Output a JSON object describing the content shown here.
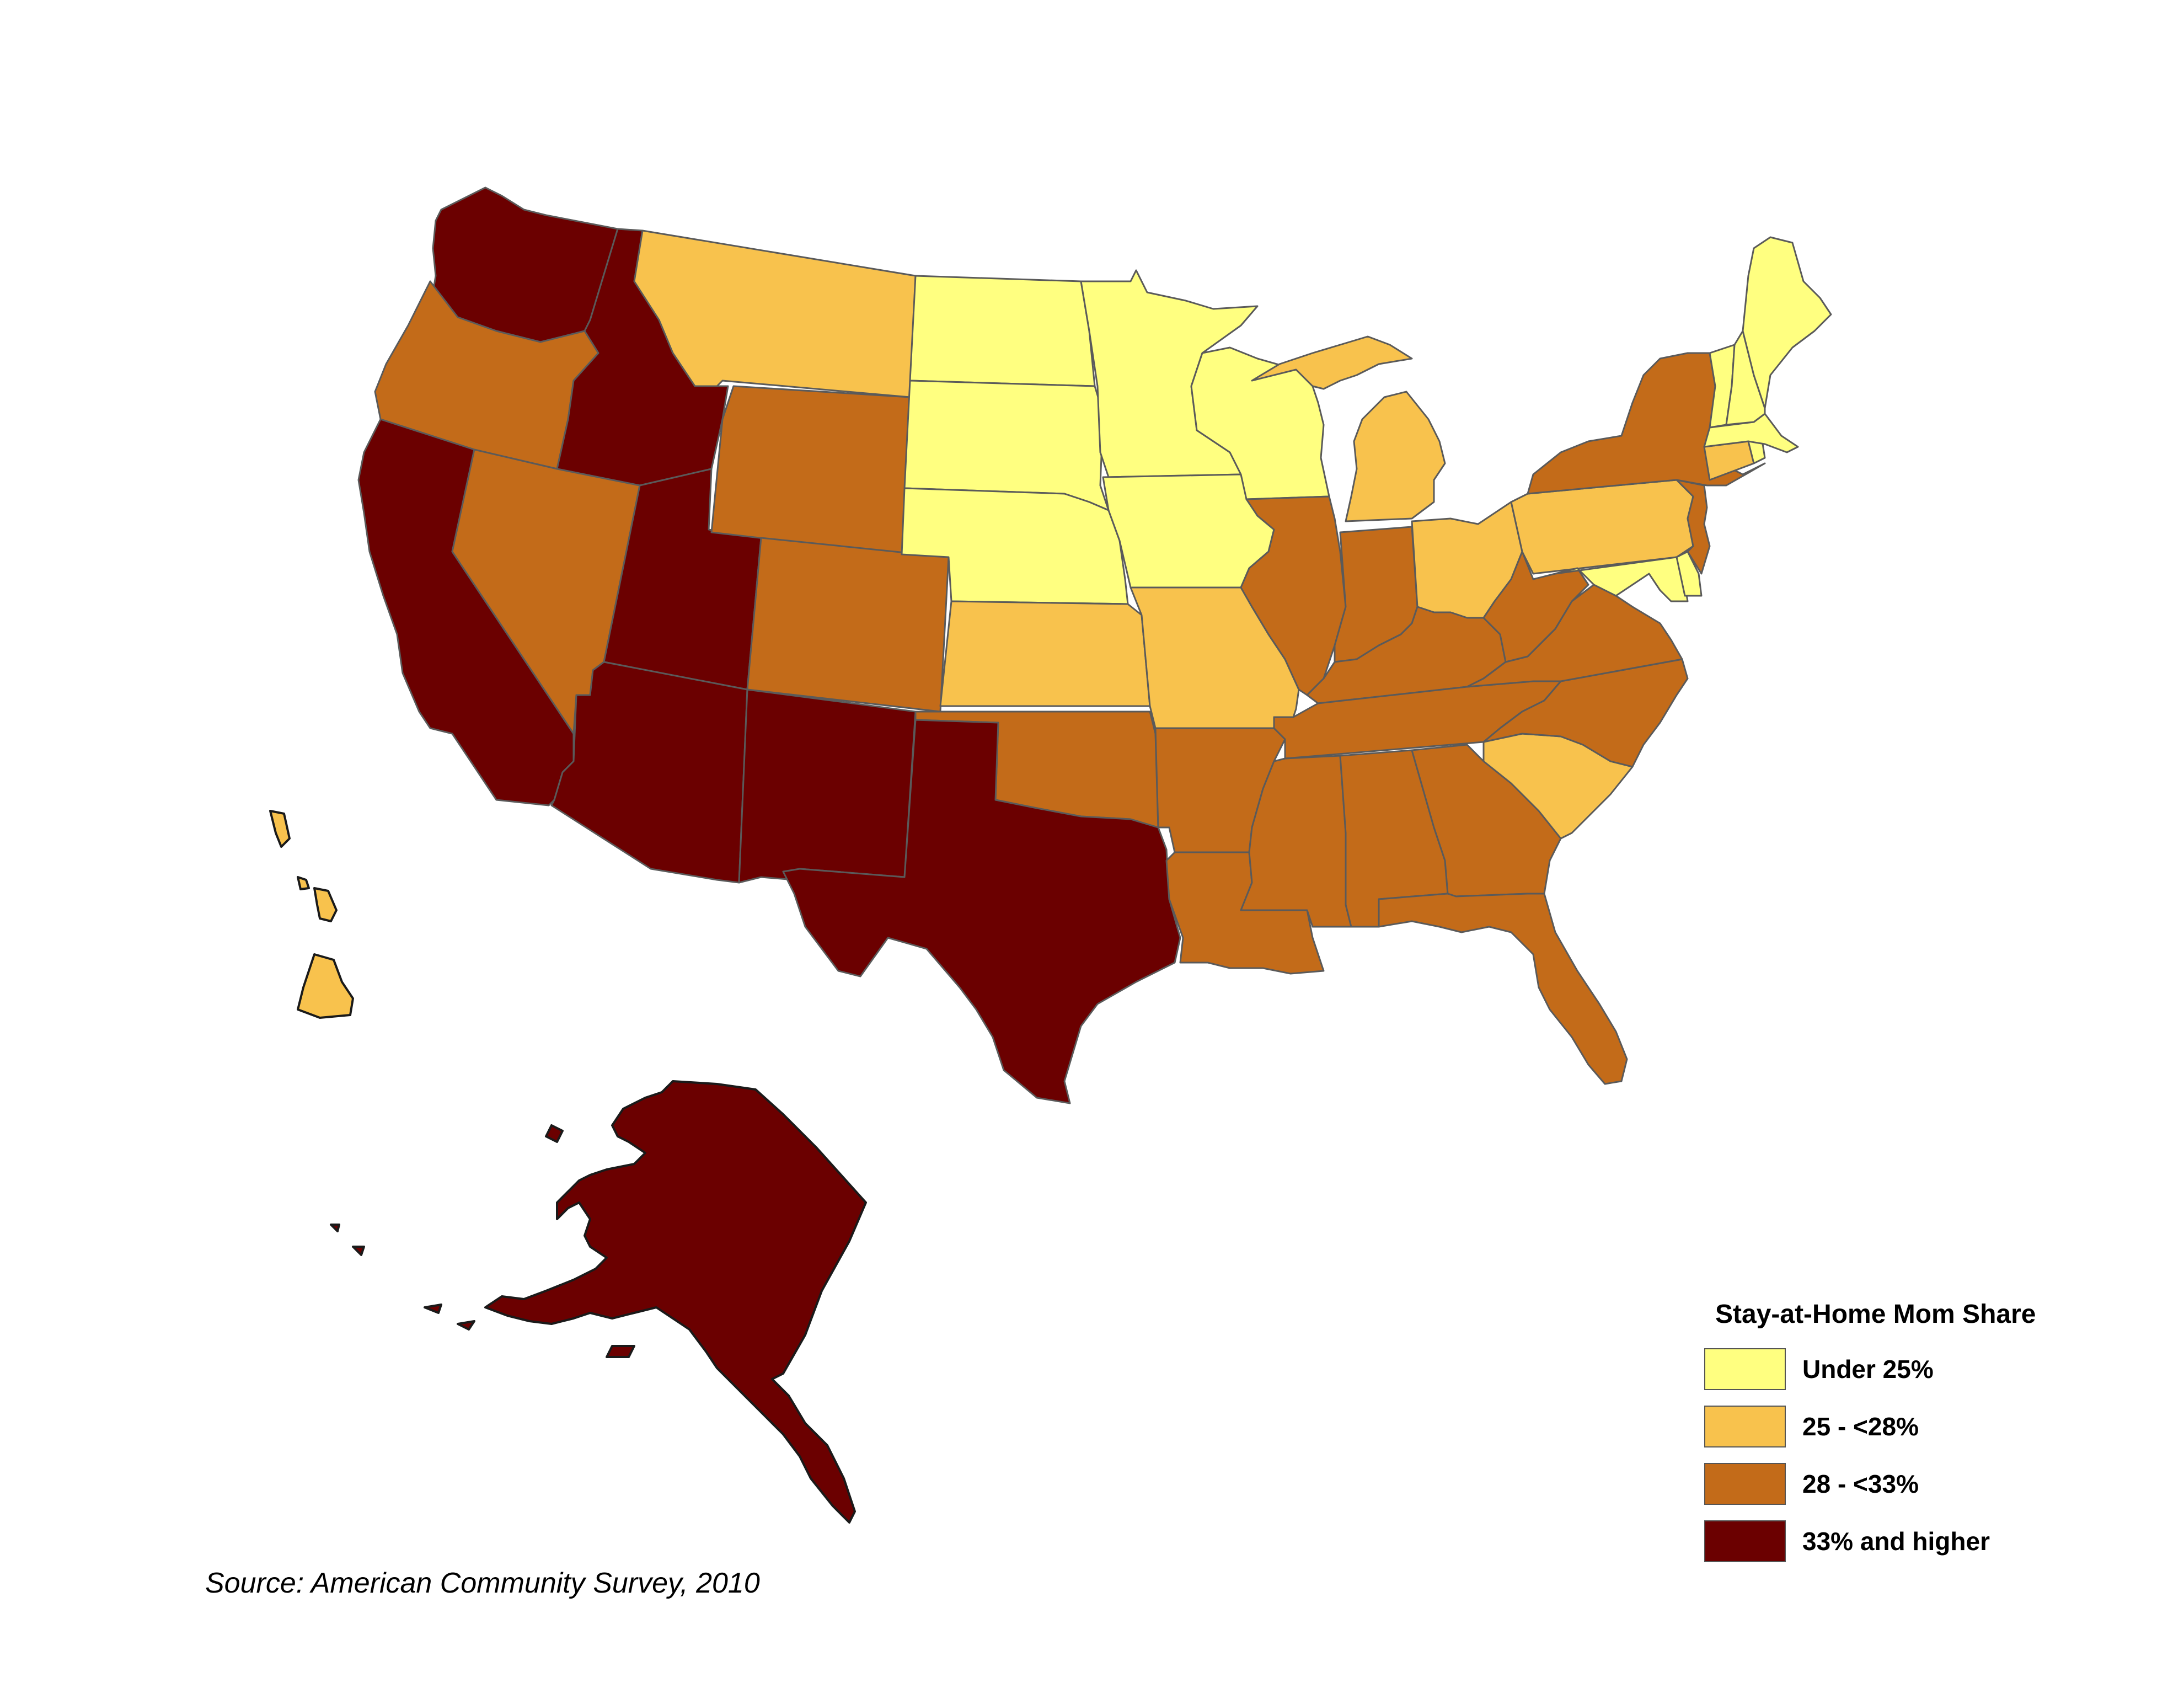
{
  "legend": {
    "title": "Stay-at-Home Mom Share",
    "items": [
      {
        "key": "c1",
        "label": "Under 25%",
        "color": "#FFFF80"
      },
      {
        "key": "c2",
        "label": "25 - <28%",
        "color": "#F8C24D"
      },
      {
        "key": "c3",
        "label": "28 - <33%",
        "color": "#C36B19"
      },
      {
        "key": "c4",
        "label": "33% and higher",
        "color": "#6B0000"
      }
    ]
  },
  "source": "Source: American Community Survey, 2010",
  "states": {
    "WA": "c4",
    "OR": "c3",
    "CA": "c4",
    "ID": "c4",
    "NV": "c3",
    "UT": "c4",
    "AZ": "c4",
    "MT": "c2",
    "WY": "c3",
    "CO": "c3",
    "NM": "c4",
    "ND": "c1",
    "SD": "c1",
    "NE": "c1",
    "KS": "c2",
    "OK": "c3",
    "TX": "c4",
    "MN": "c1",
    "IA": "c1",
    "MO": "c2",
    "AR": "c3",
    "LA": "c3",
    "WI": "c1",
    "IL": "c3",
    "MI": "c2",
    "IN": "c3",
    "OH": "c2",
    "KY": "c3",
    "TN": "c3",
    "MS": "c3",
    "AL": "c3",
    "GA": "c3",
    "FL": "c3",
    "SC": "c2",
    "NC": "c3",
    "VA": "c3",
    "WV": "c3",
    "MD": "c1",
    "DE": "c1",
    "PA": "c2",
    "NJ": "c3",
    "NY": "c3",
    "CT": "c2",
    "RI": "c1",
    "MA": "c1",
    "VT": "c1",
    "NH": "c1",
    "ME": "c1",
    "AK": "c4",
    "HI": "c2"
  }
}
